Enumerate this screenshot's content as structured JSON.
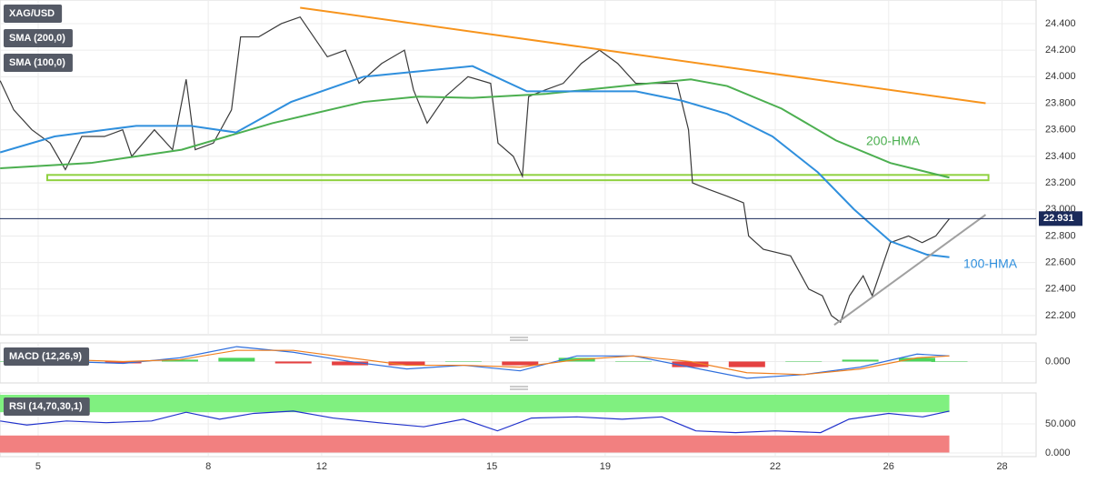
{
  "chart_data": [
    {
      "type": "line",
      "labels": [
        "XAG/USD",
        "SMA (200,0)",
        "SMA (100,0)"
      ],
      "xlim": [
        -0.673,
        17.6
      ],
      "xticks": [
        {
          "value": 0,
          "label": "5"
        },
        {
          "value": 3,
          "label": "8"
        },
        {
          "value": 5,
          "label": "12"
        },
        {
          "value": 8,
          "label": "15"
        },
        {
          "value": 10,
          "label": "19"
        },
        {
          "value": 13,
          "label": "22"
        },
        {
          "value": 15,
          "label": "26"
        },
        {
          "value": 17,
          "label": "28"
        }
      ],
      "ylim": [
        22.056,
        24.578
      ],
      "yticks": [
        {
          "value": 22.2,
          "label": "22.200"
        },
        {
          "value": 22.4,
          "label": "22.400"
        },
        {
          "value": 22.6,
          "label": "22.600"
        },
        {
          "value": 22.8,
          "label": "22.800"
        },
        {
          "value": 23.0,
          "label": "23.000"
        },
        {
          "value": 23.2,
          "label": "23.200"
        },
        {
          "value": 23.4,
          "label": "23.400"
        },
        {
          "value": 23.6,
          "label": "23.600"
        },
        {
          "value": 23.8,
          "label": "23.800"
        },
        {
          "value": 24.0,
          "label": "24.000"
        },
        {
          "value": 24.2,
          "label": "24.200"
        },
        {
          "value": 24.4,
          "label": "24.400"
        }
      ],
      "grid": true,
      "last_price": 22.931,
      "series": [
        {
          "name": "XAG/USD",
          "color": "#3a3a3a",
          "x": [
            -0.67,
            -0.43,
            -0.11,
            0.21,
            0.48,
            0.77,
            1.17,
            1.49,
            1.65,
            2.05,
            2.37,
            2.61,
            2.77,
            3.09,
            3.41,
            3.57,
            3.89,
            4.29,
            4.62,
            4.86,
            5.1,
            5.42,
            5.66,
            6.06,
            6.46,
            6.62,
            6.86,
            7.18,
            7.58,
            7.98,
            8.11,
            8.38,
            8.54,
            8.65,
            8.94,
            9.26,
            9.58,
            9.9,
            10.22,
            10.54,
            10.87,
            11.27,
            11.47,
            11.54,
            11.83,
            12.15,
            12.44,
            12.53,
            12.79,
            13.27,
            13.59,
            13.83,
            13.99,
            14.15,
            14.31,
            14.55,
            14.71,
            15.03,
            15.35,
            15.59,
            15.83,
            16.07
          ],
          "values": [
            23.97,
            23.75,
            23.6,
            23.5,
            23.3,
            23.55,
            23.55,
            23.6,
            23.4,
            23.6,
            23.45,
            23.98,
            23.45,
            23.5,
            23.75,
            24.3,
            24.3,
            24.4,
            24.45,
            24.3,
            24.15,
            24.2,
            23.95,
            24.1,
            24.2,
            23.9,
            23.65,
            23.85,
            24.0,
            23.95,
            23.5,
            23.4,
            23.25,
            23.85,
            23.9,
            23.95,
            24.1,
            24.2,
            24.1,
            23.95,
            23.95,
            23.95,
            23.6,
            23.2,
            23.15,
            23.1,
            23.05,
            22.8,
            22.7,
            22.65,
            22.4,
            22.35,
            22.2,
            22.15,
            22.35,
            22.5,
            22.35,
            22.75,
            22.8,
            22.75,
            22.8,
            22.93
          ]
        },
        {
          "name": "200-HMA",
          "color": "#4caf50",
          "x": [
            -0.67,
            0.93,
            2.53,
            4.13,
            5.74,
            6.7,
            7.66,
            8.94,
            10.54,
            11.51,
            12.15,
            13.11,
            14.07,
            15.03,
            16.07
          ],
          "values": [
            23.31,
            23.35,
            23.45,
            23.65,
            23.81,
            23.85,
            23.84,
            23.87,
            23.94,
            23.98,
            23.93,
            23.76,
            23.52,
            23.35,
            23.24
          ]
        },
        {
          "name": "100-HMA",
          "color": "#2f8fdd",
          "x": [
            -0.67,
            0.29,
            1.73,
            2.69,
            3.49,
            4.46,
            5.74,
            6.7,
            7.66,
            8.62,
            9.58,
            10.54,
            11.35,
            12.15,
            12.95,
            13.75,
            14.39,
            15.03,
            15.67,
            16.07
          ],
          "values": [
            23.43,
            23.55,
            23.63,
            23.63,
            23.58,
            23.81,
            24.0,
            24.04,
            24.08,
            23.89,
            23.89,
            23.89,
            23.82,
            23.72,
            23.55,
            23.28,
            23.0,
            22.76,
            22.66,
            22.64
          ]
        }
      ],
      "trendlines": [
        {
          "color": "#f7941d",
          "x": [
            4.62,
            16.71
          ],
          "values": [
            24.52,
            23.8
          ]
        },
        {
          "color": "#a0a0a0",
          "x": [
            14.04,
            16.71
          ],
          "values": [
            22.13,
            22.96
          ]
        }
      ],
      "zone": {
        "color": "#8fd13f",
        "x": [
          0.16,
          16.76
        ],
        "values": [
          23.22,
          23.26
        ]
      }
    },
    {
      "type": "line",
      "labels": [
        "MACD (12,26,9)"
      ],
      "ylim": [
        -0.115,
        0.1
      ],
      "yticks": [
        {
          "value": 0,
          "label": "0.000"
        }
      ],
      "series": [
        {
          "type": "bar",
          "color": "#2ecc40",
          "color_negative": "#e02020",
          "x": [
            -0.5,
            0.5,
            1.5,
            2.5,
            3.5,
            4.5,
            5.5,
            6.5,
            7.5,
            8.5,
            9.5,
            10.5,
            11.5,
            12.5,
            13.5,
            14.5,
            15.5,
            16.07
          ],
          "values": [
            0,
            -0.01,
            -0.01,
            0.01,
            0.02,
            -0.01,
            -0.02,
            -0.02,
            0,
            -0.02,
            0.02,
            0,
            -0.03,
            -0.03,
            0,
            0.01,
            0.02,
            0
          ]
        },
        {
          "type": "line",
          "color": "#2f6fdd",
          "x": [
            -0.5,
            0.5,
            1.5,
            2.5,
            3.5,
            4.5,
            5.5,
            6.5,
            7.5,
            8.5,
            9.5,
            10.5,
            11.5,
            12.5,
            13.5,
            14.5,
            15.5,
            16.07
          ],
          "values": [
            0.01,
            0.0,
            -0.01,
            0.02,
            0.08,
            0.05,
            0.0,
            -0.04,
            -0.02,
            -0.05,
            0.03,
            0.03,
            -0.03,
            -0.09,
            -0.07,
            -0.03,
            0.04,
            0.03
          ]
        },
        {
          "type": "line",
          "color": "#f08020",
          "x": [
            -0.5,
            0.5,
            1.5,
            2.5,
            3.5,
            4.5,
            5.5,
            6.5,
            7.5,
            8.5,
            9.5,
            10.5,
            11.5,
            12.5,
            13.5,
            14.5,
            15.5,
            16.07
          ],
          "values": [
            0.01,
            0.01,
            0.0,
            0.01,
            0.06,
            0.06,
            0.02,
            -0.02,
            -0.02,
            -0.03,
            0.01,
            0.03,
            0.0,
            -0.06,
            -0.07,
            -0.04,
            0.02,
            0.03
          ]
        }
      ]
    },
    {
      "type": "line",
      "labels": [
        "RSI (14,70,30,1)"
      ],
      "ylim": [
        -6.25,
        103.1
      ],
      "yticks": [
        {
          "value": 0,
          "label": "0.000"
        },
        {
          "value": 50,
          "label": "50.000"
        }
      ],
      "bands": [
        {
          "from": 70,
          "to": 100,
          "color": "#80f080"
        },
        {
          "from": 0,
          "to": 30,
          "color": "#f28080"
        }
      ],
      "series": [
        {
          "type": "line",
          "color": "#2233cc",
          "x": [
            -0.67,
            -0.2,
            0.5,
            1.2,
            2.0,
            2.61,
            3.2,
            3.8,
            4.5,
            5.2,
            6.0,
            6.8,
            7.5,
            8.1,
            8.7,
            9.5,
            10.3,
            11.0,
            11.6,
            12.3,
            13.0,
            13.8,
            14.3,
            15.0,
            15.6,
            16.07
          ],
          "values": [
            55,
            48,
            55,
            52,
            55,
            70,
            58,
            68,
            72,
            60,
            52,
            45,
            58,
            38,
            60,
            62,
            58,
            62,
            38,
            35,
            38,
            35,
            58,
            68,
            62,
            72
          ]
        }
      ]
    }
  ]
}
